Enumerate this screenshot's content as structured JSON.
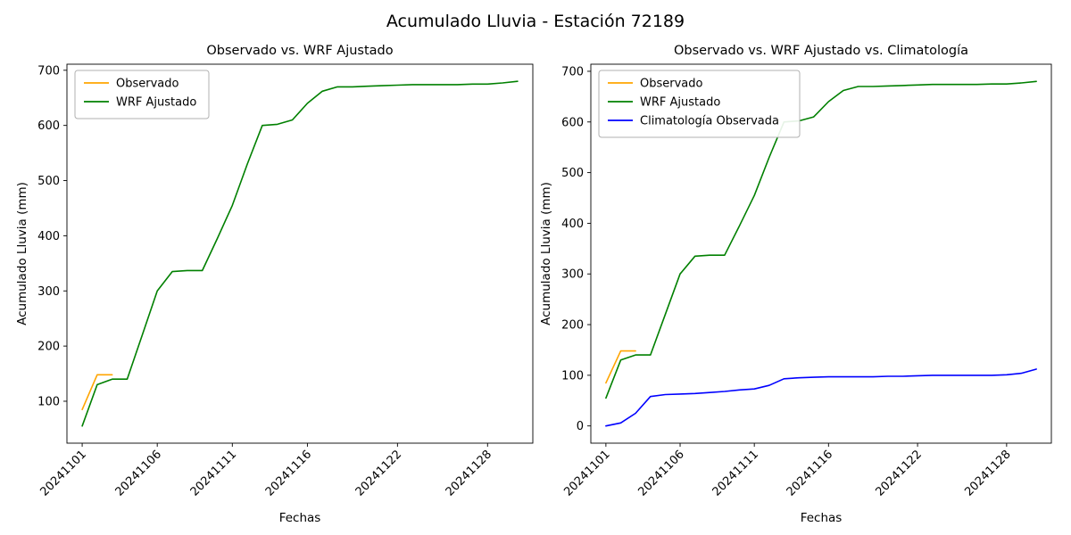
{
  "title": "Acumulado Lluvia - Estación 72189",
  "background": "#ffffff",
  "chart_data": [
    {
      "type": "line",
      "title": "Observado vs. WRF Ajustado",
      "xlabel": "Fechas",
      "ylabel": "Acumulado Lluvia (mm)",
      "legend_position": "upper left",
      "grid": false,
      "x": [
        "20241101",
        "20241102",
        "20241103",
        "20241104",
        "20241105",
        "20241106",
        "20241107",
        "20241108",
        "20241109",
        "20241110",
        "20241111",
        "20241112",
        "20241113",
        "20241114",
        "20241115",
        "20241116",
        "20241117",
        "20241118",
        "20241119",
        "20241120",
        "20241121",
        "20241122",
        "20241123",
        "20241124",
        "20241125",
        "20241126",
        "20241127",
        "20241128",
        "20241129",
        "20241130"
      ],
      "x_tick_labels": [
        "20241101",
        "20241106",
        "20241111",
        "20241116",
        "20241122",
        "20241128"
      ],
      "y_ticks": [
        100,
        200,
        300,
        400,
        500,
        600,
        700
      ],
      "ylim": [
        24,
        711
      ],
      "series": [
        {
          "name": "Observado",
          "color": "#ffa500",
          "values": [
            85,
            148,
            148
          ]
        },
        {
          "name": "WRF Ajustado",
          "color": "#008000",
          "values": [
            55,
            130,
            140,
            140,
            220,
            300,
            335,
            337,
            337,
            395,
            455,
            530,
            600,
            602,
            610,
            640,
            662,
            670,
            670,
            671,
            672,
            673,
            674,
            674,
            674,
            674,
            675,
            675,
            677,
            680
          ]
        }
      ]
    },
    {
      "type": "line",
      "title": "Observado vs. WRF Ajustado vs. Climatología",
      "xlabel": "Fechas",
      "ylabel": "Acumulado Lluvia (mm)",
      "legend_position": "upper left",
      "grid": false,
      "x": [
        "20241101",
        "20241102",
        "20241103",
        "20241104",
        "20241105",
        "20241106",
        "20241107",
        "20241108",
        "20241109",
        "20241110",
        "20241111",
        "20241112",
        "20241113",
        "20241114",
        "20241115",
        "20241116",
        "20241117",
        "20241118",
        "20241119",
        "20241120",
        "20241121",
        "20241122",
        "20241123",
        "20241124",
        "20241125",
        "20241126",
        "20241127",
        "20241128",
        "20241129",
        "20241130"
      ],
      "x_tick_labels": [
        "20241101",
        "20241106",
        "20241111",
        "20241116",
        "20241122",
        "20241128"
      ],
      "y_ticks": [
        0,
        100,
        200,
        300,
        400,
        500,
        600,
        700
      ],
      "ylim": [
        -34,
        714
      ],
      "series": [
        {
          "name": "Observado",
          "color": "#ffa500",
          "values": [
            85,
            148,
            148
          ]
        },
        {
          "name": "WRF Ajustado",
          "color": "#008000",
          "values": [
            55,
            130,
            140,
            140,
            220,
            300,
            335,
            337,
            337,
            395,
            455,
            530,
            600,
            602,
            610,
            640,
            662,
            670,
            670,
            671,
            672,
            673,
            674,
            674,
            674,
            674,
            675,
            675,
            677,
            680
          ]
        },
        {
          "name": "Climatología Observada",
          "color": "#0000ff",
          "values": [
            0,
            6,
            25,
            58,
            62,
            63,
            64,
            66,
            68,
            71,
            73,
            80,
            93,
            95,
            96,
            97,
            97,
            97,
            97,
            98,
            98,
            99,
            100,
            100,
            100,
            100,
            100,
            101,
            104,
            112
          ]
        }
      ]
    }
  ]
}
